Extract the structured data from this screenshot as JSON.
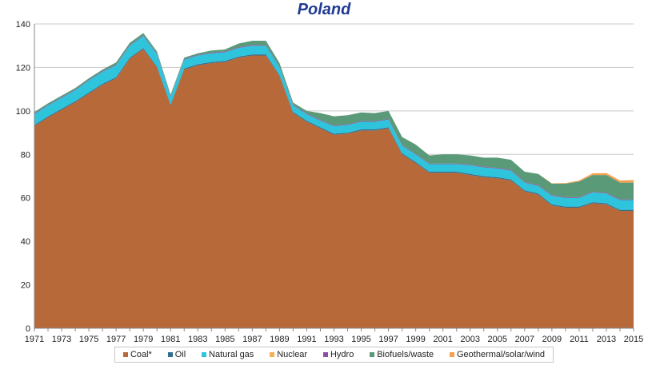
{
  "chart_data": {
    "type": "area",
    "stacked": true,
    "title": "Poland",
    "xlabel": "",
    "ylabel": "",
    "ylim": [
      0,
      140
    ],
    "yticks": [
      0,
      20,
      40,
      60,
      80,
      100,
      120,
      140
    ],
    "xlim": [
      1971,
      2015
    ],
    "xtick_labels": [
      "1971",
      "1973",
      "1975",
      "1977",
      "1979",
      "1981",
      "1983",
      "1985",
      "1987",
      "1989",
      "1991",
      "1993",
      "1995",
      "1997",
      "1999",
      "2001",
      "2003",
      "2005",
      "2007",
      "2009",
      "2011",
      "2013",
      "2015"
    ],
    "grid": true,
    "legend_position": "bottom",
    "x": [
      1971,
      1972,
      1973,
      1974,
      1975,
      1976,
      1977,
      1978,
      1979,
      1980,
      1981,
      1982,
      1983,
      1984,
      1985,
      1986,
      1987,
      1988,
      1989,
      1990,
      1991,
      1992,
      1993,
      1994,
      1995,
      1996,
      1997,
      1998,
      1999,
      2000,
      2001,
      2002,
      2003,
      2004,
      2005,
      2006,
      2007,
      2008,
      2009,
      2010,
      2011,
      2012,
      2013,
      2014,
      2015
    ],
    "series": [
      {
        "name": "Coal*",
        "color": "#b8693a",
        "values": [
          93,
          97,
          100.5,
          104,
          108,
          112,
          115,
          124,
          128.5,
          120,
          102.5,
          119,
          121,
          122,
          122.5,
          124.5,
          125.5,
          125.5,
          116,
          99,
          95,
          92,
          89,
          89.5,
          91,
          91,
          92,
          80,
          76,
          71.5,
          71.5,
          71.5,
          70.5,
          69.5,
          69,
          68,
          63,
          61.5,
          56.5,
          55.5,
          55.5,
          57.5,
          57,
          54,
          54
        ]
      },
      {
        "name": "Oil",
        "color": "#2f6f8f",
        "values": [
          0.5,
          0.5,
          0.5,
          0.5,
          0.5,
          0.5,
          0.5,
          0.5,
          0.5,
          0.5,
          0.5,
          0.5,
          0.5,
          0.5,
          0.5,
          0.5,
          0.5,
          0.5,
          0.5,
          0.5,
          0.5,
          0.5,
          0.5,
          0.5,
          0.5,
          0.5,
          0.5,
          0.5,
          0.5,
          0.5,
          0.5,
          0.5,
          0.5,
          0.5,
          0.5,
          0.5,
          0.5,
          0.5,
          0.5,
          0.5,
          0.5,
          0.5,
          0.5,
          0.5,
          0.5
        ]
      },
      {
        "name": "Natural gas",
        "color": "#2ec4dc",
        "values": [
          5,
          5,
          5,
          5,
          5.5,
          5.5,
          5.5,
          5.5,
          5.5,
          5.5,
          3.5,
          4,
          4,
          4,
          4,
          4,
          4,
          4,
          3.5,
          3,
          3,
          3,
          3.5,
          3.5,
          3.5,
          3.5,
          3.5,
          3.5,
          3.5,
          3.5,
          3.5,
          3.5,
          4,
          4,
          4,
          4,
          3.5,
          3.5,
          4,
          4,
          4,
          4.5,
          4.5,
          4.5,
          4.5
        ]
      },
      {
        "name": "Nuclear",
        "color": "#f5b05a",
        "values": [
          0,
          0,
          0,
          0,
          0,
          0,
          0,
          0,
          0,
          0,
          0,
          0,
          0,
          0,
          0,
          0,
          0,
          0,
          0,
          0,
          0,
          0,
          0,
          0,
          0,
          0,
          0,
          0,
          0,
          0,
          0,
          0,
          0,
          0,
          0,
          0,
          0,
          0,
          0,
          0,
          0,
          0,
          0,
          0,
          0
        ]
      },
      {
        "name": "Hydro",
        "color": "#8e4fa3",
        "values": [
          0.3,
          0.3,
          0.3,
          0.3,
          0.3,
          0.3,
          0.3,
          0.3,
          0.3,
          0.3,
          0.3,
          0.3,
          0.3,
          0.3,
          0.3,
          0.3,
          0.3,
          0.3,
          0.3,
          0.3,
          0.3,
          0.3,
          0.3,
          0.3,
          0.3,
          0.3,
          0.3,
          0.3,
          0.3,
          0.3,
          0.3,
          0.3,
          0.3,
          0.3,
          0.3,
          0.3,
          0.3,
          0.3,
          0.3,
          0.3,
          0.3,
          0.3,
          0.3,
          0.3,
          0.3
        ]
      },
      {
        "name": "Biofuels/waste",
        "color": "#5a9a78",
        "values": [
          0.7,
          0.7,
          0.7,
          0.7,
          0.7,
          0.7,
          1,
          1,
          1,
          1,
          0.7,
          0.7,
          0.7,
          1,
          1,
          1.7,
          2,
          2,
          1.7,
          1,
          1.2,
          3.2,
          4.2,
          4.2,
          4,
          3.7,
          3.7,
          3.7,
          4.2,
          3.7,
          4.2,
          4.2,
          4.2,
          4.2,
          4.7,
          4.7,
          4.7,
          5.2,
          5.2,
          6.2,
          7.2,
          7.7,
          8.2,
          7.7,
          7.7
        ]
      },
      {
        "name": "Geothermal/solar/wind",
        "color": "#f5a050",
        "values": [
          0,
          0,
          0,
          0,
          0,
          0,
          0,
          0,
          0,
          0,
          0,
          0,
          0,
          0,
          0,
          0,
          0,
          0,
          0,
          0,
          0,
          0,
          0,
          0,
          0,
          0,
          0,
          0,
          0,
          0,
          0,
          0,
          0,
          0,
          0,
          0,
          0,
          0,
          0.2,
          0.3,
          0.5,
          0.8,
          0.9,
          1,
          1.2
        ]
      }
    ]
  }
}
